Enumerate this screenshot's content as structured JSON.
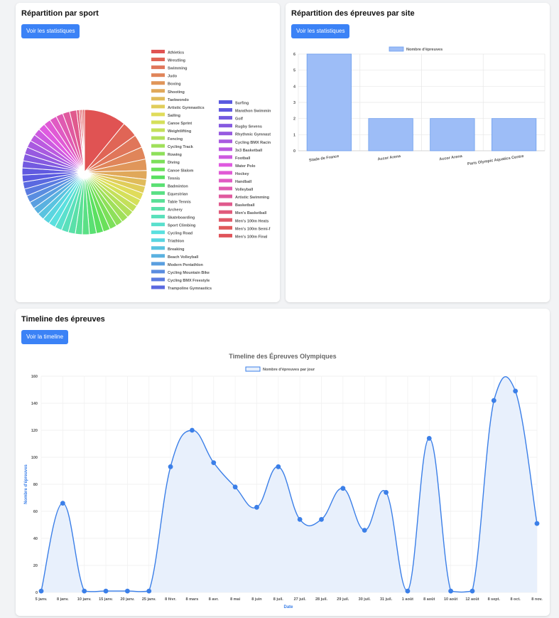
{
  "cards": {
    "sport": {
      "title": "Répartition par sport",
      "button": "Voir les statistiques"
    },
    "site": {
      "title": "Répartition des épreuves par site",
      "button": "Voir les statistiques"
    },
    "timeline": {
      "title": "Timeline des épreuves",
      "button": "Voir la timeline"
    }
  },
  "chart_data": [
    {
      "type": "pie",
      "labels": [
        "Athletics",
        "Wrestling",
        "Swimming",
        "Judo",
        "Boxing",
        "Shooting",
        "Taekwondo",
        "Artistic Gymnastics",
        "Sailing",
        "Canoe Sprint",
        "Weightlifting",
        "Fencing",
        "Cycling Track",
        "Rowing",
        "Diving",
        "Canoe Slalom",
        "Tennis",
        "Badminton",
        "Equestrian",
        "Table Tennis",
        "Archery",
        "Skateboarding",
        "Sport Climbing",
        "Cycling Road",
        "Triathlon",
        "Breaking",
        "Beach Volleyball",
        "Modern Pentathlon",
        "Cycling Mountain Bike",
        "Cycling BMX Freestyle",
        "Trampoline Gymnastics",
        "Surfing",
        "Marathon Swimmin",
        "Golf",
        "Rugby Sevens",
        "Rhythmic Gymnast",
        "Cycling BMX Racin",
        "3x3 Basketball",
        "Football",
        "Water Polo",
        "Hockey",
        "Handball",
        "Volleyball",
        "Artistic Swimming",
        "Basketball",
        "Men's Basketball",
        "Men's 100m Heats",
        "Men's 100m Semi-f",
        "Men's 100m Final"
      ],
      "values": [
        48,
        18,
        15,
        14,
        13,
        10,
        8,
        8,
        8,
        8,
        8,
        8,
        8,
        8,
        8,
        8,
        8,
        8,
        8,
        8,
        8,
        8,
        8,
        8,
        8,
        8,
        8,
        8,
        8,
        8,
        8,
        8,
        8,
        8,
        8,
        8,
        8,
        8,
        8,
        8,
        8,
        8,
        8,
        8,
        8,
        3,
        2,
        2,
        2
      ],
      "colors": [
        "#e05353",
        "#e06556",
        "#e0765a",
        "#e0855a",
        "#e0965a",
        "#e0a85a",
        "#e0bb5a",
        "#e0cd5a",
        "#e0dc5a",
        "#d5e05a",
        "#c4e05a",
        "#b2e05a",
        "#a0e05a",
        "#8ee05a",
        "#7ce05a",
        "#6ae05a",
        "#5ae061",
        "#5ae073",
        "#5ae085",
        "#5ae097",
        "#5ae0a9",
        "#5ae0bb",
        "#5ae0cd",
        "#5ae0df",
        "#5ad5e0",
        "#5ac3e0",
        "#5ab1e0",
        "#5a9fe0",
        "#5a8de0",
        "#5a7be0",
        "#5a69e0",
        "#5a5ae0",
        "#615ae0",
        "#735ae0",
        "#855ae0",
        "#975ae0",
        "#a95ae0",
        "#bb5ae0",
        "#cd5ae0",
        "#df5ae0",
        "#e05ad5",
        "#e05ac3",
        "#e05ab1",
        "#e05a9f",
        "#e05a8d",
        "#e05a7b",
        "#e05a69",
        "#e05a5a",
        "#e0535a"
      ]
    },
    {
      "type": "bar",
      "legend": "Nombre d'épreuves",
      "categories": [
        "Stade de France",
        "Accor Arena",
        "Accor Arena",
        "Paris Olympic Aquatics Centre"
      ],
      "values": [
        6,
        2,
        2,
        2
      ],
      "ylim": [
        0,
        6
      ],
      "yticks": [
        0,
        1,
        2,
        3,
        4,
        5,
        6
      ],
      "color": "#9dbdf7",
      "border": "#6d9eee"
    },
    {
      "type": "area",
      "title": "Timeline des Épreuves Olympiques",
      "legend": "Nombre d'épreuves par jour",
      "xlabel": "Date",
      "ylabel": "Nombre d'épreuves",
      "categories": [
        "5 janv.",
        "8 janv.",
        "10 janv.",
        "15 janv.",
        "20 janv.",
        "25 janv.",
        "8 févr.",
        "8 mars",
        "8 avr.",
        "8 mai",
        "8 juin",
        "8 juil.",
        "27 juil.",
        "28 juil.",
        "29 juil.",
        "30 juil.",
        "31 juil.",
        "1 août",
        "8 août",
        "10 août",
        "12 août",
        "8 sept.",
        "8 oct.",
        "8 nov."
      ],
      "values": [
        1,
        66,
        1,
        1,
        1,
        1,
        93,
        120,
        96,
        78,
        63,
        93,
        54,
        54,
        77,
        46,
        74,
        1,
        114,
        1,
        1,
        142,
        149,
        51
      ],
      "ylim": [
        0,
        160
      ],
      "yticks": [
        0,
        20,
        40,
        60,
        80,
        100,
        120,
        140,
        160
      ],
      "color": "#3b7fe8"
    }
  ]
}
